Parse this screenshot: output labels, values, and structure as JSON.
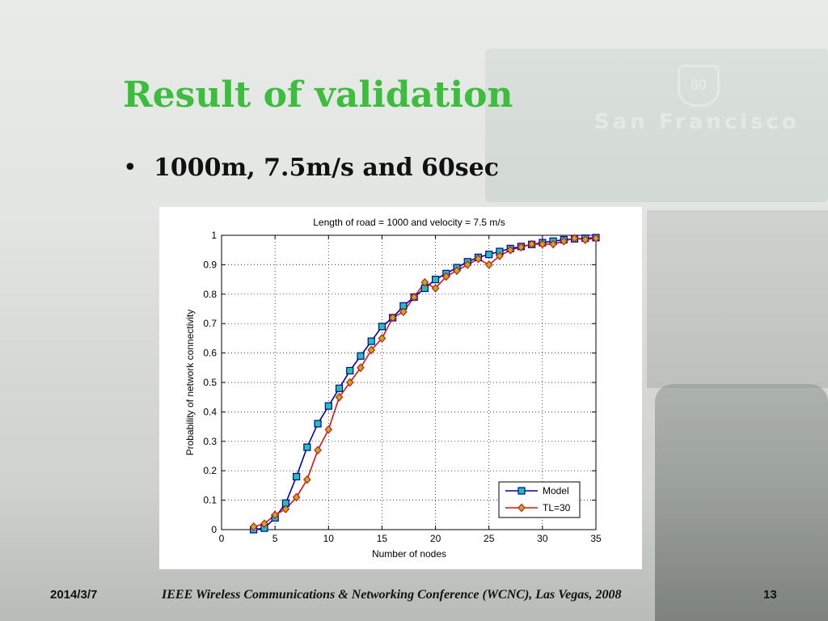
{
  "slide": {
    "title": "Result of validation",
    "bullet": "1000m, 7.5m/s and 60sec"
  },
  "footer": {
    "date": "2014/3/7",
    "conference": "IEEE Wireless Communications & Networking Conference (WCNC), Las Vegas, 2008",
    "page": "13"
  },
  "background": {
    "sign_text": "San Francisco",
    "shield_text": "80"
  },
  "chart_data": {
    "type": "line",
    "title": "Length of road = 1000 and velocity = 7.5 m/s",
    "xlabel": "Number of nodes",
    "ylabel": "Probability of network connectivity",
    "xlim": [
      0,
      35
    ],
    "ylim": [
      0,
      1
    ],
    "xticks": [
      "0",
      "5",
      "10",
      "15",
      "20",
      "25",
      "30",
      "35"
    ],
    "yticks": [
      "0",
      "0.1",
      "0.2",
      "0.3",
      "0.4",
      "0.5",
      "0.6",
      "0.7",
      "0.8",
      "0.9",
      "1"
    ],
    "grid": true,
    "legend": "bottom-right",
    "series": [
      {
        "name": "Model",
        "color": "#0000aa",
        "marker": "square",
        "marker_color": "#22c4a6",
        "x": [
          3,
          4,
          5,
          6,
          7,
          8,
          9,
          10,
          11,
          12,
          13,
          14,
          15,
          16,
          17,
          18,
          19,
          20,
          21,
          22,
          23,
          24,
          25,
          26,
          27,
          28,
          29,
          30,
          31,
          32,
          33,
          34,
          35
        ],
        "y": [
          0.0,
          0.005,
          0.04,
          0.09,
          0.18,
          0.28,
          0.36,
          0.42,
          0.48,
          0.54,
          0.59,
          0.64,
          0.69,
          0.72,
          0.76,
          0.79,
          0.82,
          0.85,
          0.87,
          0.89,
          0.91,
          0.925,
          0.935,
          0.945,
          0.955,
          0.962,
          0.969,
          0.975,
          0.98,
          0.985,
          0.988,
          0.99,
          0.992
        ]
      },
      {
        "name": "TL=30",
        "color": "#dd1111",
        "marker": "diamond",
        "marker_color": "#aab820",
        "x": [
          3,
          4,
          5,
          6,
          7,
          8,
          9,
          10,
          11,
          12,
          13,
          14,
          15,
          16,
          17,
          18,
          19,
          20,
          21,
          22,
          23,
          24,
          25,
          26,
          27,
          28,
          29,
          30,
          31,
          32,
          33,
          34,
          35
        ],
        "y": [
          0.01,
          0.02,
          0.05,
          0.07,
          0.11,
          0.17,
          0.27,
          0.34,
          0.45,
          0.5,
          0.55,
          0.61,
          0.65,
          0.72,
          0.74,
          0.79,
          0.84,
          0.82,
          0.86,
          0.88,
          0.9,
          0.92,
          0.9,
          0.93,
          0.95,
          0.96,
          0.97,
          0.97,
          0.97,
          0.98,
          0.99,
          0.985,
          0.99
        ]
      }
    ]
  }
}
